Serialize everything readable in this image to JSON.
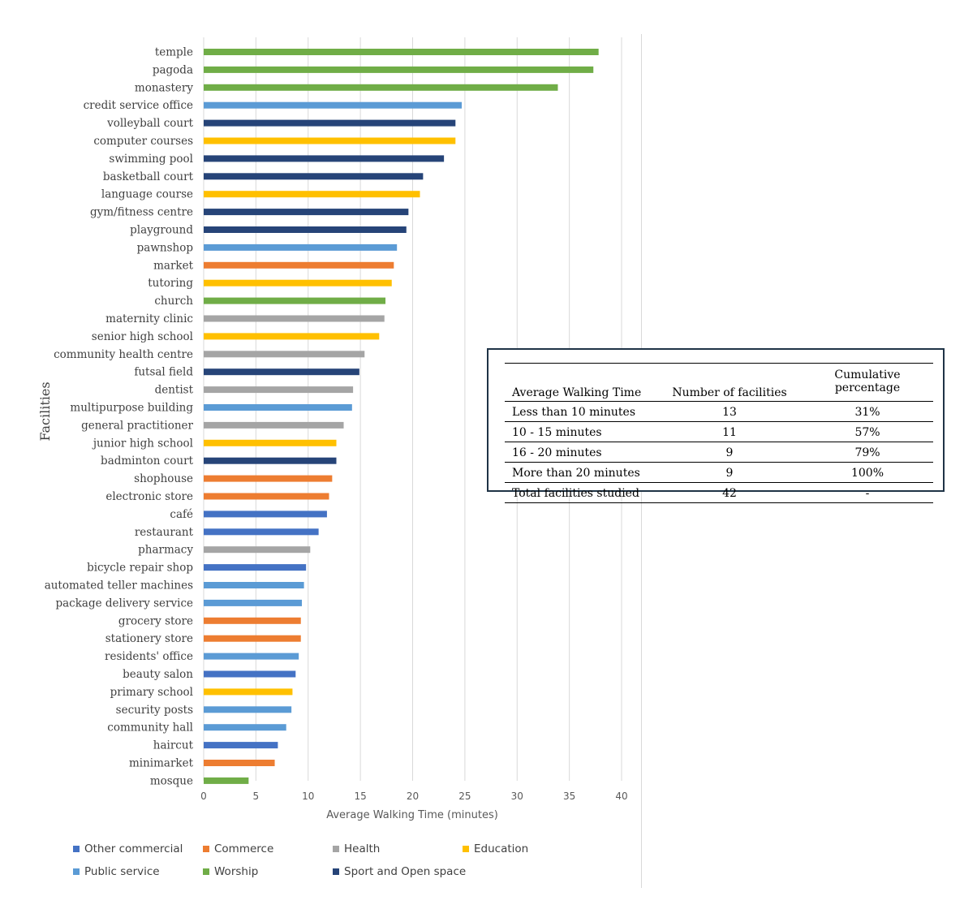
{
  "chart_data": {
    "type": "bar",
    "orientation": "horizontal",
    "xlabel": "Average Walking Time (minutes)",
    "ylabel": "Facilities",
    "xlim": [
      0,
      40
    ],
    "xticks": [
      0,
      5,
      10,
      15,
      20,
      25,
      30,
      35,
      40
    ],
    "grid": "vertical",
    "legend_position": "bottom",
    "categories": [
      "temple",
      "pagoda",
      "monastery",
      "credit service office",
      "volleyball court",
      "computer courses",
      "swimming pool",
      "basketball court",
      "language course",
      "gym/fitness centre",
      "playground",
      "pawnshop",
      "market",
      "tutoring",
      "church",
      "maternity clinic",
      "senior high school",
      "community health centre",
      "futsal field",
      "dentist",
      "multipurpose building",
      "general practitioner",
      "junior high school",
      "badminton court",
      "shophouse",
      "electronic store",
      "café",
      "restaurant",
      "pharmacy",
      "bicycle repair shop",
      "automated teller machines",
      "package delivery service",
      "grocery store",
      "stationery store",
      "residents' office",
      "beauty salon",
      "primary school",
      "security posts",
      "community hall",
      "haircut",
      "minimarket",
      "mosque"
    ],
    "values": [
      37.8,
      37.3,
      33.9,
      24.7,
      24.1,
      24.1,
      23.0,
      21.0,
      20.7,
      19.6,
      19.4,
      18.5,
      18.2,
      18.0,
      17.4,
      17.3,
      16.8,
      15.4,
      14.9,
      14.3,
      14.2,
      13.4,
      12.7,
      12.7,
      12.3,
      12.0,
      11.8,
      11.0,
      10.2,
      9.8,
      9.6,
      9.4,
      9.3,
      9.3,
      9.1,
      8.8,
      8.5,
      8.4,
      7.9,
      7.1,
      6.8,
      4.3
    ],
    "groups": [
      "Worship",
      "Worship",
      "Worship",
      "Public service",
      "Sport and Open space",
      "Education",
      "Sport and Open space",
      "Sport and Open space",
      "Education",
      "Sport and Open space",
      "Sport and Open space",
      "Public service",
      "Commerce",
      "Education",
      "Worship",
      "Health",
      "Education",
      "Health",
      "Sport and Open space",
      "Health",
      "Public service",
      "Health",
      "Education",
      "Sport and Open space",
      "Commerce",
      "Commerce",
      "Other commercial",
      "Other commercial",
      "Health",
      "Other commercial",
      "Public service",
      "Public service",
      "Commerce",
      "Commerce",
      "Public service",
      "Other commercial",
      "Education",
      "Public service",
      "Public service",
      "Other commercial",
      "Commerce",
      "Worship"
    ],
    "legend": [
      {
        "name": "Other commercial",
        "color": "#4472c4"
      },
      {
        "name": "Commerce",
        "color": "#ed7d31"
      },
      {
        "name": "Health",
        "color": "#a5a5a5"
      },
      {
        "name": "Education",
        "color": "#ffc000"
      },
      {
        "name": "Public service",
        "color": "#5b9bd5"
      },
      {
        "name": "Worship",
        "color": "#70ad47"
      },
      {
        "name": "Sport and Open space",
        "color": "#264478"
      }
    ]
  },
  "table": {
    "headers": [
      "Average Walking Time",
      "Number of facilities",
      "Cumulative percentage"
    ],
    "rows": [
      [
        "Less than 10 minutes",
        "13",
        "31%"
      ],
      [
        "10 - 15 minutes",
        "11",
        "57%"
      ],
      [
        "16 - 20 minutes",
        "9",
        "79%"
      ],
      [
        "More than 20 minutes",
        "9",
        "100%"
      ],
      [
        "Total facilities studied",
        "42",
        "-"
      ]
    ]
  }
}
